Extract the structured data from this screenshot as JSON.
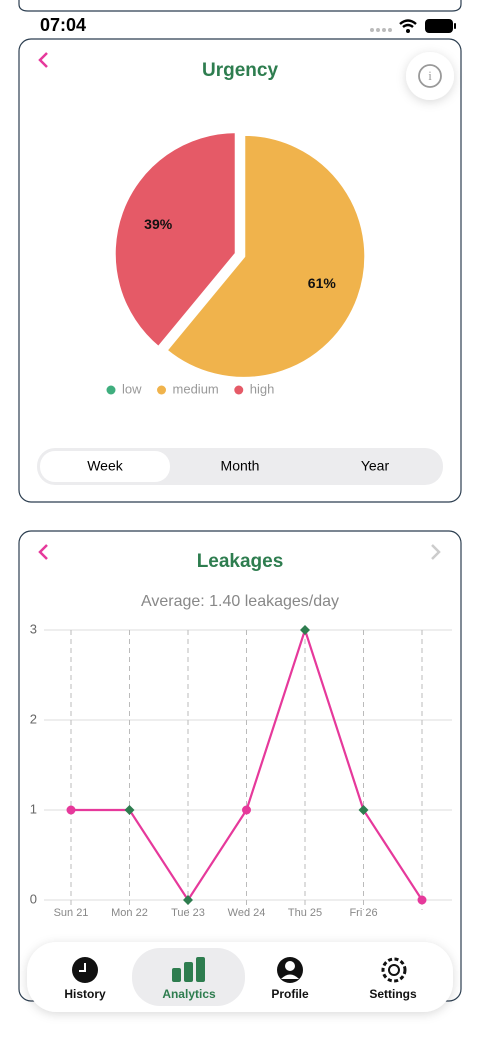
{
  "status_bar": {
    "time": "07:04"
  },
  "chart_data": [
    {
      "type": "pie",
      "title": "Urgency",
      "categories": [
        "low",
        "medium",
        "high"
      ],
      "values": [
        0,
        61,
        39
      ],
      "value_labels": [
        null,
        "61%",
        "39%"
      ],
      "colors": [
        "#3fae7e",
        "#f0b34c",
        "#e55a67"
      ]
    },
    {
      "type": "line",
      "title": "Leakages",
      "subtitle": "Average: 1.40 leakages/day",
      "categories": [
        "Sun 21",
        "Mon 22",
        "Tue 23",
        "Wed 24",
        "Thu 25",
        "Fri 26",
        null
      ],
      "values": [
        1,
        1,
        0,
        1,
        3,
        1,
        0
      ],
      "markers": [
        "circle",
        "diamond",
        "diamond",
        "circle",
        "diamond",
        "diamond",
        "circle"
      ],
      "color": "#e6399b",
      "marker_colors": {
        "circle": "#e6399b",
        "diamond": "#2e7d4f"
      },
      "ylim": [
        0,
        3
      ],
      "yticks": [
        0,
        1,
        2,
        3
      ],
      "grid": true
    }
  ],
  "period_selector": {
    "options": [
      "Week",
      "Month",
      "Year"
    ],
    "selected": "Week"
  },
  "nav": {
    "items": [
      "History",
      "Analytics",
      "Profile",
      "Settings"
    ],
    "selected": "Analytics"
  }
}
